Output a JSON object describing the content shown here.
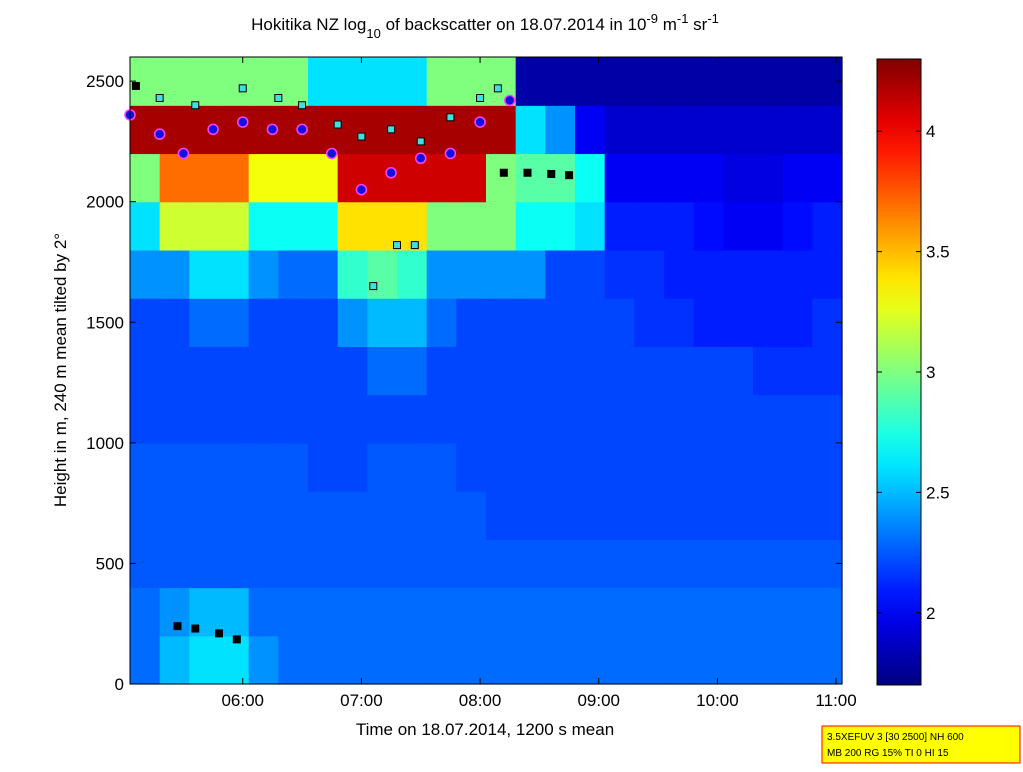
{
  "chart_data": {
    "type": "heatmap",
    "title_parts": [
      {
        "text": "Hokitika NZ log",
        "shift": "normal"
      },
      {
        "text": "10",
        "shift": "sub"
      },
      {
        "text": " of backscatter on 18.07.2014 in 10",
        "shift": "normal"
      },
      {
        "text": "-9",
        "shift": "super"
      },
      {
        "text": " m",
        "shift": "normal"
      },
      {
        "text": "-1",
        "shift": "super"
      },
      {
        "text": " sr",
        "shift": "normal"
      },
      {
        "text": "-1",
        "shift": "super"
      }
    ],
    "x_label": "Time on 18.07.2014, 1200 s mean",
    "y_label": "Height in m, 240 m mean tilted by 2°",
    "xlim": [
      5.05,
      11.05
    ],
    "xticks": [
      {
        "value": 6,
        "label": "06:00"
      },
      {
        "value": 7,
        "label": "07:00"
      },
      {
        "value": 8,
        "label": "08:00"
      },
      {
        "value": 9,
        "label": "09:00"
      },
      {
        "value": 10,
        "label": "10:00"
      },
      {
        "value": 11,
        "label": "11:00"
      }
    ],
    "ylim": [
      0,
      2600
    ],
    "yticks": [
      0,
      500,
      1000,
      1500,
      2000,
      2500
    ],
    "clim": [
      1.7,
      4.3
    ],
    "cticks": [
      2,
      2.5,
      3,
      3.5,
      4
    ],
    "colormap": "jet",
    "z": [
      [
        2.3,
        2.5,
        2.6,
        2.6,
        2.4,
        2.3,
        2.3,
        2.3,
        2.3,
        2.3,
        2.3,
        2.3,
        2.3,
        2.3,
        2.3,
        2.3,
        2.3,
        2.3,
        2.3,
        2.3,
        2.3,
        2.3,
        2.3,
        2.3
      ],
      [
        2.3,
        2.4,
        2.5,
        2.5,
        2.3,
        2.3,
        2.3,
        2.3,
        2.3,
        2.3,
        2.3,
        2.3,
        2.3,
        2.3,
        2.3,
        2.3,
        2.3,
        2.3,
        2.3,
        2.3,
        2.3,
        2.3,
        2.3,
        2.3
      ],
      [
        2.25,
        2.25,
        2.25,
        2.25,
        2.25,
        2.25,
        2.25,
        2.25,
        2.25,
        2.25,
        2.25,
        2.25,
        2.25,
        2.25,
        2.25,
        2.25,
        2.25,
        2.25,
        2.25,
        2.25,
        2.25,
        2.25,
        2.25,
        2.25
      ],
      [
        2.25,
        2.25,
        2.25,
        2.25,
        2.25,
        2.25,
        2.25,
        2.25,
        2.25,
        2.25,
        2.25,
        2.25,
        2.2,
        2.2,
        2.2,
        2.2,
        2.2,
        2.2,
        2.2,
        2.2,
        2.2,
        2.2,
        2.2,
        2.2
      ],
      [
        2.25,
        2.25,
        2.25,
        2.25,
        2.25,
        2.25,
        2.2,
        2.2,
        2.25,
        2.25,
        2.25,
        2.2,
        2.2,
        2.2,
        2.2,
        2.2,
        2.2,
        2.2,
        2.2,
        2.2,
        2.2,
        2.2,
        2.2,
        2.2
      ],
      [
        2.2,
        2.2,
        2.2,
        2.2,
        2.2,
        2.2,
        2.2,
        2.2,
        2.2,
        2.2,
        2.2,
        2.2,
        2.2,
        2.2,
        2.2,
        2.2,
        2.2,
        2.2,
        2.2,
        2.2,
        2.2,
        2.2,
        2.2,
        2.2
      ],
      [
        2.2,
        2.2,
        2.2,
        2.2,
        2.2,
        2.2,
        2.2,
        2.2,
        2.3,
        2.3,
        2.2,
        2.2,
        2.2,
        2.2,
        2.2,
        2.2,
        2.2,
        2.2,
        2.2,
        2.2,
        2.2,
        2.15,
        2.15,
        2.15
      ],
      [
        2.2,
        2.2,
        2.3,
        2.3,
        2.2,
        2.2,
        2.2,
        2.4,
        2.5,
        2.5,
        2.3,
        2.2,
        2.2,
        2.2,
        2.2,
        2.2,
        2.2,
        2.15,
        2.15,
        2.1,
        2.1,
        2.1,
        2.1,
        2.15
      ],
      [
        2.4,
        2.4,
        2.6,
        2.6,
        2.4,
        2.3,
        2.3,
        2.8,
        2.9,
        2.8,
        2.4,
        2.4,
        2.4,
        2.4,
        2.2,
        2.2,
        2.15,
        2.15,
        2.1,
        2.1,
        2.1,
        2.1,
        2.1,
        2.1
      ],
      [
        2.6,
        3.2,
        3.2,
        3.2,
        2.7,
        2.7,
        2.7,
        3.4,
        3.4,
        3.4,
        3.0,
        3.0,
        3.0,
        2.7,
        2.7,
        2.6,
        2.1,
        2.1,
        2.1,
        2.05,
        2.0,
        2.0,
        2.05,
        2.1
      ],
      [
        3.0,
        3.7,
        3.7,
        3.7,
        3.3,
        3.3,
        3.3,
        4.1,
        4.1,
        4.1,
        4.1,
        4.1,
        3.0,
        2.9,
        2.9,
        2.7,
        2.0,
        2.0,
        2.0,
        2.0,
        1.95,
        1.95,
        2.0,
        2.0
      ],
      [
        4.2,
        4.2,
        4.2,
        4.2,
        4.2,
        4.2,
        4.2,
        4.2,
        4.2,
        4.2,
        4.2,
        4.2,
        4.2,
        2.6,
        2.4,
        2.0,
        1.9,
        1.9,
        1.9,
        1.9,
        1.9,
        1.9,
        1.9,
        1.9
      ],
      [
        3.0,
        3.0,
        3.0,
        3.0,
        3.0,
        3.0,
        2.6,
        2.6,
        2.6,
        2.6,
        3.0,
        3.0,
        3.0,
        1.8,
        1.8,
        1.8,
        1.8,
        1.8,
        1.8,
        1.8,
        1.8,
        1.8,
        1.8,
        1.8
      ]
    ],
    "overlays": [
      {
        "marker": "square",
        "color": "#40e0e0",
        "edge": "#000000",
        "x": [
          5.3,
          5.6,
          6.0,
          6.3,
          6.5,
          6.8,
          7.0,
          7.25,
          7.5,
          7.75,
          8.0,
          8.15,
          7.1,
          7.3,
          7.45
        ],
        "y": [
          2430,
          2400,
          2470,
          2430,
          2400,
          2320,
          2270,
          2300,
          2250,
          2350,
          2430,
          2470,
          1650,
          1820,
          1820
        ]
      },
      {
        "marker": "square",
        "color": "#000000",
        "edge": "#000000",
        "x": [
          5.45,
          5.6,
          5.8,
          5.95,
          8.2,
          8.4,
          8.6,
          8.75,
          5.1
        ],
        "y": [
          240,
          230,
          210,
          185,
          2120,
          2120,
          2115,
          2110,
          2480
        ]
      },
      {
        "marker": "circle",
        "color": "#1010e0",
        "edge": "#ff40ff",
        "x": [
          5.05,
          5.3,
          5.5,
          5.75,
          6.0,
          6.25,
          6.5,
          6.75,
          7.0,
          7.25,
          7.5,
          7.75,
          8.0,
          8.25
        ],
        "y": [
          2360,
          2280,
          2200,
          2300,
          2330,
          2300,
          2300,
          2200,
          2050,
          2120,
          2180,
          2200,
          2330,
          2420
        ]
      }
    ],
    "info_box": [
      "3.5XEFUV 3 [30 2500] NH 600",
      "MB 200 RG 15% TI 0 HI 15"
    ]
  }
}
